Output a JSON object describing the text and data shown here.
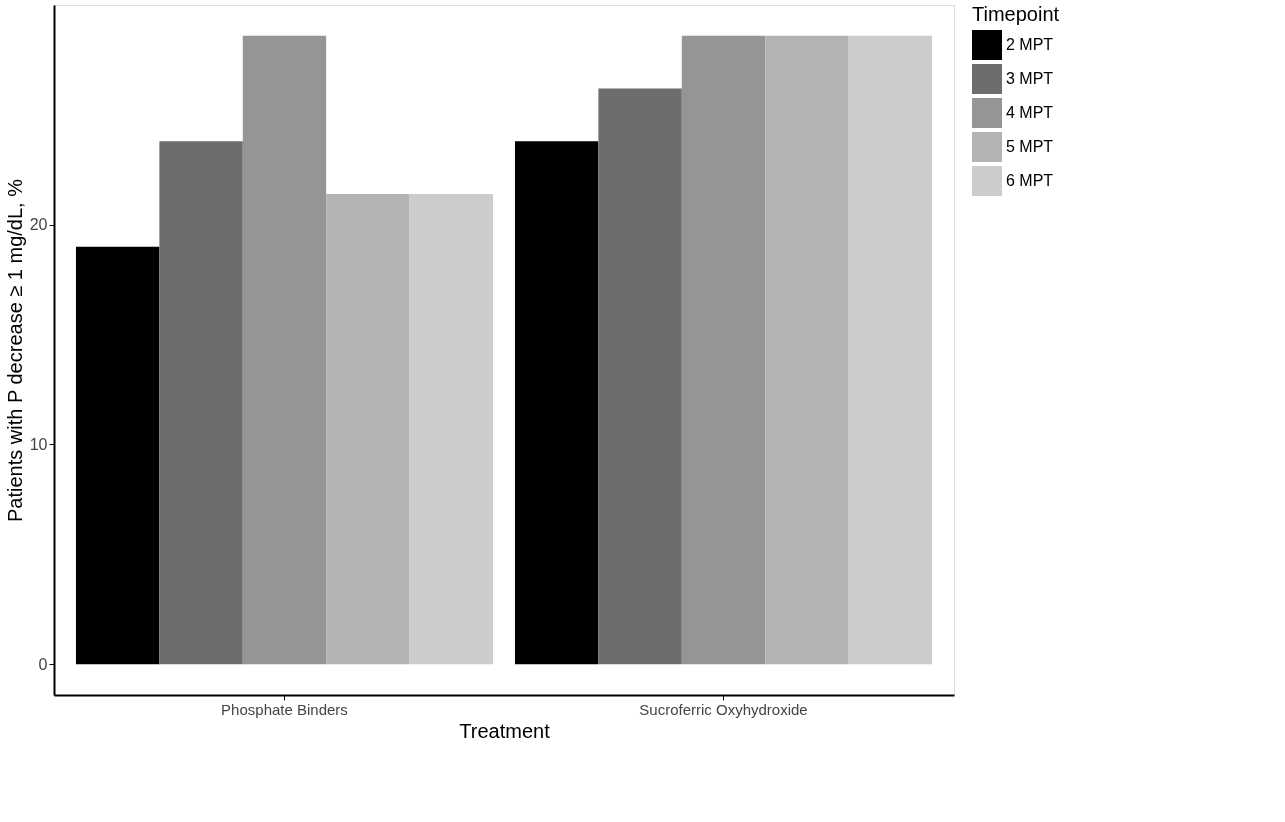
{
  "chart_data": {
    "type": "bar",
    "xlabel": "Treatment",
    "ylabel": "Patients with P decrease ≥ 1 mg/dL, %",
    "legend_title": "Timepoint",
    "categories": [
      "Phosphate Binders",
      "Sucroferric Oxyhydroxide"
    ],
    "series": [
      {
        "name": "2 MPT",
        "color": "#000000",
        "values": [
          19.0,
          23.8
        ]
      },
      {
        "name": "3 MPT",
        "color": "#6d6d6d",
        "values": [
          23.8,
          26.2
        ]
      },
      {
        "name": "4 MPT",
        "color": "#959595",
        "values": [
          28.6,
          28.6
        ]
      },
      {
        "name": "5 MPT",
        "color": "#b3b3b3",
        "values": [
          21.4,
          28.6
        ]
      },
      {
        "name": "6 MPT",
        "color": "#cccccc",
        "values": [
          21.4,
          28.6
        ]
      }
    ],
    "ylim": [
      -1.4,
      30
    ],
    "yticks": [
      0,
      10,
      20
    ],
    "grid": false,
    "legend": "right"
  }
}
